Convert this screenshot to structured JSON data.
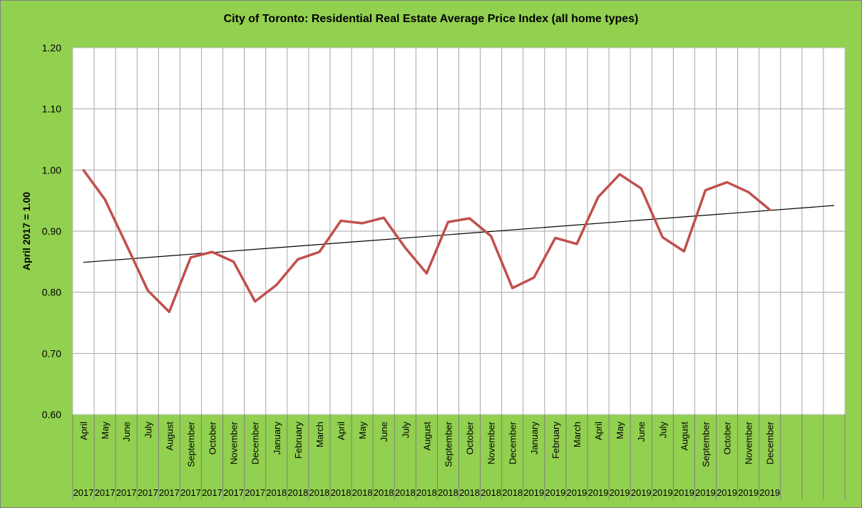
{
  "chart_data": {
    "type": "line",
    "title": "City of Toronto: Residential Real Estate Average Price Index  (all home types)",
    "ylabel": "April 2017 = 1.00",
    "xlabel": "",
    "ylim": [
      0.6,
      1.2
    ],
    "yticks": [
      "0.60",
      "0.70",
      "0.80",
      "0.90",
      "1.00",
      "1.10",
      "1.20"
    ],
    "grid": true,
    "legend": "none",
    "categories": [
      {
        "month": "April",
        "year": "2017"
      },
      {
        "month": "May",
        "year": "2017"
      },
      {
        "month": "June",
        "year": "2017"
      },
      {
        "month": "July",
        "year": "2017"
      },
      {
        "month": "August",
        "year": "2017"
      },
      {
        "month": "September",
        "year": "2017"
      },
      {
        "month": "October",
        "year": "2017"
      },
      {
        "month": "November",
        "year": "2017"
      },
      {
        "month": "December",
        "year": "2017"
      },
      {
        "month": "January",
        "year": "2018"
      },
      {
        "month": "February",
        "year": "2018"
      },
      {
        "month": "March",
        "year": "2018"
      },
      {
        "month": "April",
        "year": "2018"
      },
      {
        "month": "May",
        "year": "2018"
      },
      {
        "month": "June",
        "year": "2018"
      },
      {
        "month": "July",
        "year": "2018"
      },
      {
        "month": "August",
        "year": "2018"
      },
      {
        "month": "September",
        "year": "2018"
      },
      {
        "month": "October",
        "year": "2018"
      },
      {
        "month": "November",
        "year": "2018"
      },
      {
        "month": "December",
        "year": "2018"
      },
      {
        "month": "January",
        "year": "2019"
      },
      {
        "month": "February",
        "year": "2019"
      },
      {
        "month": "March",
        "year": "2019"
      },
      {
        "month": "April",
        "year": "2019"
      },
      {
        "month": "May",
        "year": "2019"
      },
      {
        "month": "June",
        "year": "2019"
      },
      {
        "month": "July",
        "year": "2019"
      },
      {
        "month": "August",
        "year": "2019"
      },
      {
        "month": "September",
        "year": "2019"
      },
      {
        "month": "October",
        "year": "2019"
      },
      {
        "month": "November",
        "year": "2019"
      },
      {
        "month": "December",
        "year": "2019"
      }
    ],
    "extra_empty_categories": 3,
    "series": [
      {
        "values": [
          1.0,
          0.952,
          0.878,
          0.803,
          0.768,
          0.857,
          0.866,
          0.85,
          0.785,
          0.812,
          0.854,
          0.866,
          0.917,
          0.913,
          0.922,
          0.873,
          0.831,
          0.915,
          0.921,
          0.892,
          0.807,
          0.824,
          0.889,
          0.879,
          0.956,
          0.993,
          0.97,
          0.89,
          0.867,
          0.967,
          0.98,
          0.964,
          0.935
        ],
        "color": "#c0504d"
      }
    ],
    "trendline": {
      "type": "linear",
      "start": 0.849,
      "end": 0.942,
      "color": "#000000"
    },
    "colors": {
      "background": "#92d050",
      "plot_area": "#ffffff",
      "grid": "#a6a6a6",
      "line": "#c0504d",
      "trend": "#000000"
    }
  }
}
